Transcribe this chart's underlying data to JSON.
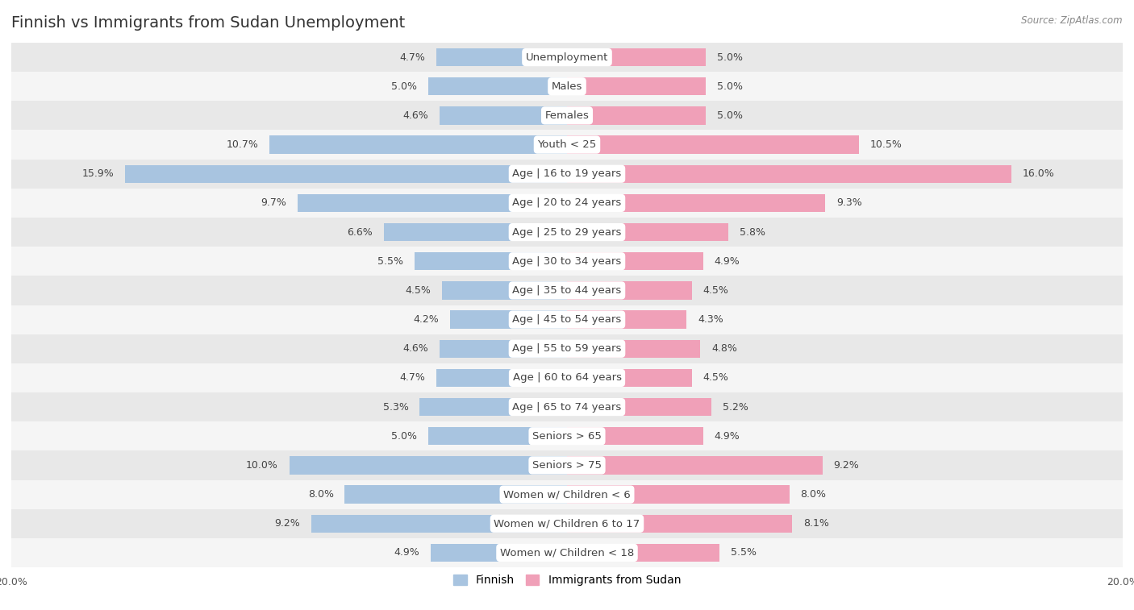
{
  "title": "Finnish vs Immigrants from Sudan Unemployment",
  "source": "Source: ZipAtlas.com",
  "categories": [
    "Unemployment",
    "Males",
    "Females",
    "Youth < 25",
    "Age | 16 to 19 years",
    "Age | 20 to 24 years",
    "Age | 25 to 29 years",
    "Age | 30 to 34 years",
    "Age | 35 to 44 years",
    "Age | 45 to 54 years",
    "Age | 55 to 59 years",
    "Age | 60 to 64 years",
    "Age | 65 to 74 years",
    "Seniors > 65",
    "Seniors > 75",
    "Women w/ Children < 6",
    "Women w/ Children 6 to 17",
    "Women w/ Children < 18"
  ],
  "finnish_values": [
    4.7,
    5.0,
    4.6,
    10.7,
    15.9,
    9.7,
    6.6,
    5.5,
    4.5,
    4.2,
    4.6,
    4.7,
    5.3,
    5.0,
    10.0,
    8.0,
    9.2,
    4.9
  ],
  "sudan_values": [
    5.0,
    5.0,
    5.0,
    10.5,
    16.0,
    9.3,
    5.8,
    4.9,
    4.5,
    4.3,
    4.8,
    4.5,
    5.2,
    4.9,
    9.2,
    8.0,
    8.1,
    5.5
  ],
  "finnish_color": "#a8c4e0",
  "sudan_color": "#f0a0b8",
  "finnish_color_dark": "#7aadd4",
  "sudan_color_dark": "#e8708c",
  "row_color_light": "#f5f5f5",
  "row_color_dark": "#e8e8e8",
  "label_bg_color": "#ffffff",
  "xlim": 20.0,
  "legend_finnish": "Finnish",
  "legend_sudan": "Immigrants from Sudan",
  "title_fontsize": 14,
  "label_fontsize": 9.5,
  "value_fontsize": 9
}
